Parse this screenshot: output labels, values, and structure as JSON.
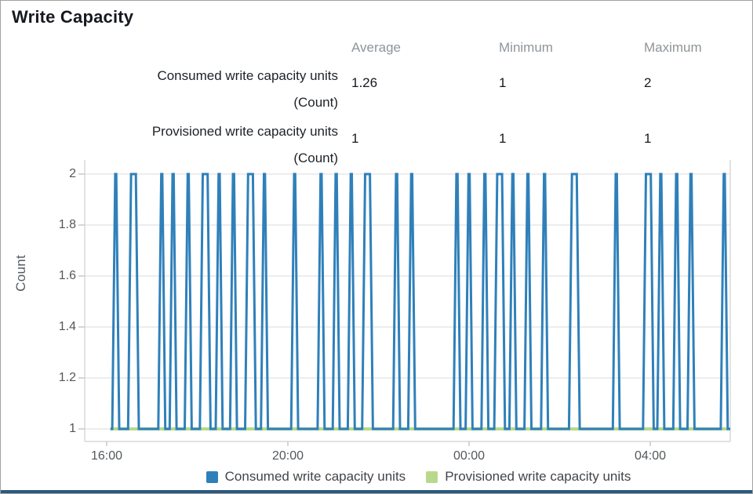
{
  "title": "Write Capacity",
  "stats": {
    "columns": [
      "Average",
      "Minimum",
      "Maximum"
    ],
    "rows": [
      {
        "label": "Consumed write capacity units",
        "sublabel": "(Count)",
        "average": "1.26",
        "minimum": "1",
        "maximum": "2"
      },
      {
        "label": "Provisioned write capacity units",
        "sublabel": "(Count)",
        "average": "1",
        "minimum": "1",
        "maximum": "1"
      }
    ]
  },
  "chart_data": {
    "type": "line",
    "title": "Write Capacity",
    "xlabel": "",
    "ylabel": "Count",
    "ylim": [
      0.95,
      2.05
    ],
    "grid": true,
    "legend_position": "bottom",
    "y_ticks": [
      {
        "v": 1,
        "label": "1"
      },
      {
        "v": 1.2,
        "label": "1.2"
      },
      {
        "v": 1.4,
        "label": "1.4"
      },
      {
        "v": 1.6,
        "label": "1.6"
      },
      {
        "v": 1.8,
        "label": "1.8"
      },
      {
        "v": 2,
        "label": "2"
      }
    ],
    "x_ticks": [
      {
        "minutes": 0,
        "label": "16:00"
      },
      {
        "minutes": 240,
        "label": "20:00"
      },
      {
        "minutes": 480,
        "label": "00:00"
      },
      {
        "minutes": 720,
        "label": "04:00"
      }
    ],
    "sample_interval_minutes": 5,
    "data_range_minutes": [
      5,
      826
    ],
    "series": [
      {
        "name": "Consumed write capacity units",
        "color": "#2f80ba",
        "base_value": 1,
        "peak_value": 2,
        "spikes_minutes_after_1600": [
          [
            12,
            1
          ],
          [
            33,
            2
          ],
          [
            73,
            1
          ],
          [
            88,
            1
          ],
          [
            108,
            1
          ],
          [
            128,
            2
          ],
          [
            149,
            1
          ],
          [
            168,
            1
          ],
          [
            188,
            2
          ],
          [
            209,
            1
          ],
          [
            249,
            1
          ],
          [
            284,
            1
          ],
          [
            304,
            1
          ],
          [
            324,
            1
          ],
          [
            343,
            2
          ],
          [
            384,
            1
          ],
          [
            404,
            1
          ],
          [
            464,
            1
          ],
          [
            480,
            1
          ],
          [
            501,
            1
          ],
          [
            518,
            2
          ],
          [
            538,
            1
          ],
          [
            558,
            1
          ],
          [
            580,
            1
          ],
          [
            617,
            2
          ],
          [
            675,
            1
          ],
          [
            715,
            2
          ],
          [
            734,
            1
          ],
          [
            755,
            1
          ],
          [
            774,
            1
          ],
          [
            818,
            1
          ]
        ]
      },
      {
        "name": "Provisioned write capacity units",
        "color": "#b8d98b",
        "value": 1
      }
    ]
  },
  "colors": {
    "consumed_blue": "#2f80ba",
    "provisioned_green": "#b8d98b",
    "gridline": "#ededed",
    "plot_border": "#d9d9d9",
    "tick_mark": "#c9c9c9",
    "footer_bar": "#2a5a7e"
  }
}
